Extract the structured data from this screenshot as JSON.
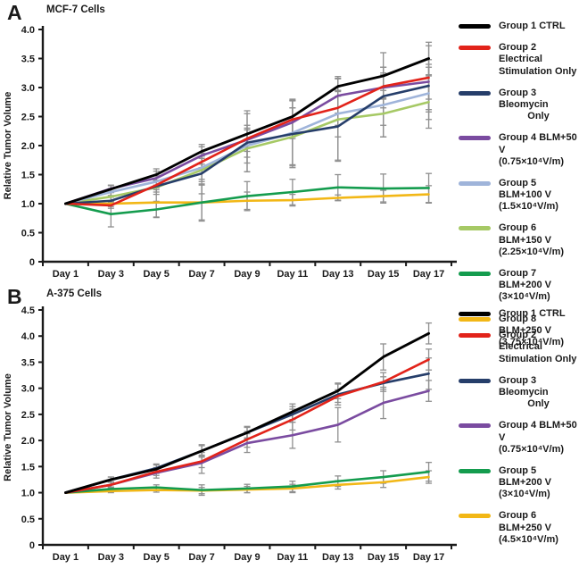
{
  "chart_data": [
    {
      "type": "line",
      "panel_label": "A",
      "title": "MCF-7 Cells",
      "ylabel": "Relative Tumor Volume",
      "ylim": [
        0,
        4.0
      ],
      "yticks": [
        "0",
        "0.5",
        "1.0",
        "1.5",
        "2.0",
        "2.5",
        "3.0",
        "3.5",
        "4.0"
      ],
      "categories": [
        "Day 1",
        "Day 3",
        "Day 5",
        "Day 7",
        "Day 9",
        "Day 11",
        "Day 13",
        "Day 15",
        "Day 17"
      ],
      "grid": "off",
      "legend_position": "right",
      "error_bar_color": "#8f8f8f",
      "series": [
        {
          "name": "Group 1 CTRL",
          "color": "#000000",
          "legend": [
            {
              "text": "Group 1 CTRL"
            }
          ],
          "values": [
            1.0,
            1.25,
            1.5,
            1.9,
            2.2,
            2.5,
            3.02,
            3.2,
            3.5
          ],
          "err": [
            0,
            0.06,
            0.1,
            0.12,
            0.4,
            0.3,
            0.17,
            0.4,
            0.28
          ]
        },
        {
          "name": "Group 2 Electrical Stimulation Only",
          "color": "#e2231a",
          "legend": [
            {
              "text": "Group 2 Electrical"
            },
            {
              "text": "Stimulation Only"
            }
          ],
          "values": [
            1.0,
            0.97,
            1.32,
            1.72,
            2.12,
            2.45,
            2.65,
            3.02,
            3.17
          ],
          "err": [
            0,
            0.05,
            0.08,
            0.1,
            0.15,
            0.33,
            0.3,
            0.2,
            0.55
          ]
        },
        {
          "name": "Group 3 Bleomycin Only",
          "color": "#263e6a",
          "legend": [
            {
              "text": "Group 3 Bleomycin"
            },
            {
              "text": "Only",
              "center": true
            }
          ],
          "values": [
            1.0,
            1.05,
            1.3,
            1.52,
            2.05,
            2.2,
            2.33,
            2.85,
            3.03
          ],
          "err": [
            0,
            0.06,
            0.1,
            0.35,
            0.5,
            0.58,
            0.6,
            0.5,
            0.45
          ]
        },
        {
          "name": "Group 4 BLM+50 V (0.75×10⁴V/m)",
          "color": "#7a4ba0",
          "legend": [
            {
              "text": "Group 4 BLM+50 V"
            },
            {
              "text": "(0.75×10⁴V/m)"
            }
          ],
          "values": [
            1.0,
            1.26,
            1.44,
            1.83,
            2.1,
            2.4,
            2.86,
            3.0,
            3.1
          ],
          "err": [
            0,
            0.06,
            0.12,
            0.15,
            0.2,
            0.25,
            0.3,
            0.35,
            0.3
          ]
        },
        {
          "name": "Group 5 BLM+100 V (1.5×10⁴V/m)",
          "color": "#9fb4da",
          "legend": [
            {
              "text": "Group 5 BLM+100 V"
            },
            {
              "text": "(1.5×10⁴V/m)"
            }
          ],
          "values": [
            1.0,
            1.2,
            1.38,
            1.62,
            2.0,
            2.22,
            2.55,
            2.7,
            2.9
          ],
          "err": [
            0,
            0.06,
            0.1,
            0.2,
            0.3,
            0.55,
            0.4,
            0.55,
            0.45
          ]
        },
        {
          "name": "Group 6 BLM+150 V (2.25×10⁴V/m)",
          "color": "#a6c965",
          "legend": [
            {
              "text": "Group 6 BLM+150 V"
            },
            {
              "text": "(2.25×10⁴V/m)"
            }
          ],
          "values": [
            1.0,
            1.12,
            1.28,
            1.58,
            1.95,
            2.15,
            2.45,
            2.55,
            2.75
          ],
          "err": [
            0,
            0.08,
            0.12,
            0.2,
            0.4,
            0.5,
            0.7,
            0.4,
            0.45
          ]
        },
        {
          "name": "Group 7 BLM+200 V (3×10⁴V/m)",
          "color": "#149c4e",
          "legend": [
            {
              "text": "Group 7 BLM+200 V"
            },
            {
              "text": "(3×10⁴V/m)"
            }
          ],
          "values": [
            1.0,
            0.82,
            0.9,
            1.02,
            1.13,
            1.2,
            1.28,
            1.26,
            1.27
          ],
          "err": [
            0,
            0.22,
            0.14,
            0.3,
            0.25,
            0.22,
            0.22,
            0.25,
            0.25
          ]
        },
        {
          "name": "Group 8 BLM+250 V (3.75×10⁴V/m)",
          "color": "#f2b716",
          "legend": [
            {
              "text": "Group 8 BLM+250 V"
            },
            {
              "text": "(3.75×10⁴V/m)"
            }
          ],
          "values": [
            1.0,
            1.0,
            1.02,
            1.02,
            1.05,
            1.06,
            1.1,
            1.13,
            1.16
          ],
          "err": [
            0,
            0.05,
            0.25,
            0.32,
            0.15,
            0.1,
            0.05,
            0.1,
            0.15
          ]
        }
      ]
    },
    {
      "type": "line",
      "panel_label": "B",
      "title": "A-375 Cells",
      "ylabel": "Relative Tumor Volume",
      "ylim": [
        0,
        4.5
      ],
      "yticks": [
        "0",
        "0.5",
        "1.0",
        "1.5",
        "2.0",
        "2.5",
        "3.0",
        "3.5",
        "4.0",
        "4.5"
      ],
      "categories": [
        "Day 1",
        "Day 3",
        "Day 5",
        "Day 7",
        "Day 9",
        "Day 11",
        "Day 13",
        "Day 15",
        "Day 17"
      ],
      "grid": "off",
      "legend_position": "right",
      "error_bar_color": "#8f8f8f",
      "series": [
        {
          "name": "Group 1 CTRL",
          "color": "#000000",
          "legend": [
            {
              "text": "Group 1 CTRL"
            }
          ],
          "values": [
            1.0,
            1.25,
            1.45,
            1.8,
            2.15,
            2.55,
            2.95,
            3.6,
            4.05
          ],
          "err": [
            0,
            0.05,
            0.08,
            0.1,
            0.12,
            0.15,
            0.15,
            0.25,
            0.2
          ]
        },
        {
          "name": "Group 2 Electrical Stimulation Only",
          "color": "#e2231a",
          "legend": [
            {
              "text": "Group 2 Electrical"
            },
            {
              "text": "Stimulation Only"
            }
          ],
          "values": [
            1.0,
            1.15,
            1.4,
            1.6,
            2.02,
            2.4,
            2.85,
            3.12,
            3.55
          ],
          "err": [
            0,
            0.05,
            0.07,
            0.12,
            0.15,
            0.2,
            0.12,
            0.18,
            0.2
          ]
        },
        {
          "name": "Group 3 Bleomycin Only",
          "color": "#263e6a",
          "legend": [
            {
              "text": "Group 3 Bleomycin"
            },
            {
              "text": "Only",
              "center": true
            }
          ],
          "values": [
            1.0,
            1.25,
            1.47,
            1.8,
            2.15,
            2.5,
            2.88,
            3.1,
            3.28
          ],
          "err": [
            0,
            0.05,
            0.08,
            0.12,
            0.1,
            0.15,
            0.2,
            0.12,
            0.3
          ]
        },
        {
          "name": "Group 4 BLM+50 V (0.75×10⁴V/m)",
          "color": "#7a4ba0",
          "legend": [
            {
              "text": "Group 4 BLM+50 V"
            },
            {
              "text": "(0.75×10⁴V/m)"
            }
          ],
          "values": [
            1.0,
            1.15,
            1.38,
            1.57,
            1.95,
            2.1,
            2.3,
            2.72,
            2.95
          ],
          "err": [
            0,
            0.06,
            0.1,
            0.2,
            0.18,
            0.25,
            0.33,
            0.3,
            0.2
          ]
        },
        {
          "name": "Group 5 BLM+200 V (3×10⁴V/m)",
          "color": "#149c4e",
          "legend": [
            {
              "text": "Group 5 BLM+200 V"
            },
            {
              "text": "(3×10⁴V/m)"
            }
          ],
          "values": [
            1.0,
            1.07,
            1.1,
            1.05,
            1.08,
            1.12,
            1.22,
            1.3,
            1.4
          ],
          "err": [
            0,
            0.04,
            0.05,
            0.1,
            0.08,
            0.1,
            0.1,
            0.12,
            0.18
          ]
        },
        {
          "name": "Group 6 BLM+250 V (4.5×10⁴V/m)",
          "color": "#f2b716",
          "legend": [
            {
              "text": "Group 6 BLM+250 V"
            },
            {
              "text": "(4.5×10⁴V/m)"
            }
          ],
          "values": [
            1.0,
            1.03,
            1.05,
            1.04,
            1.06,
            1.08,
            1.15,
            1.2,
            1.3
          ],
          "err": [
            0,
            0.03,
            0.04,
            0.06,
            0.06,
            0.08,
            0.08,
            0.1,
            0.12
          ]
        }
      ]
    }
  ]
}
